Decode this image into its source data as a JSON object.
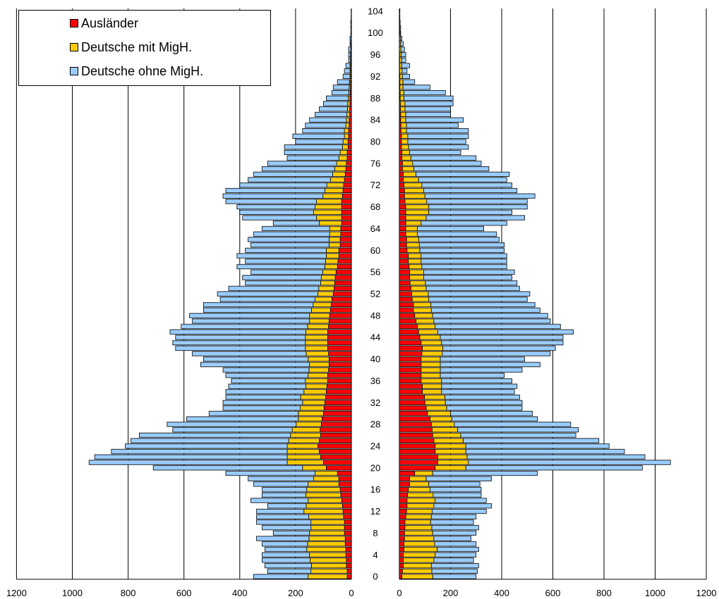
{
  "chart_data": {
    "type": "bar",
    "orientation": "horizontal-pyramid",
    "center_axis_labels": [
      "0",
      "4",
      "8",
      "12",
      "16",
      "20",
      "24",
      "28",
      "32",
      "36",
      "40",
      "44",
      "48",
      "52",
      "56",
      "60",
      "64",
      "68",
      "72",
      "76",
      "80",
      "84",
      "88",
      "92",
      "96",
      "100",
      "104"
    ],
    "left_axis": {
      "xlim": [
        1200,
        0
      ],
      "ticks": [
        "1200",
        "1000",
        "800",
        "600",
        "400",
        "200",
        "0"
      ]
    },
    "right_axis": {
      "xlim": [
        0,
        1200
      ],
      "ticks": [
        "0",
        "200",
        "400",
        "600",
        "800",
        "1000",
        "1200"
      ]
    },
    "grid": "vertical",
    "legend": {
      "position": "top-left",
      "items": [
        {
          "label": "Ausländer",
          "color": "#ff0000"
        },
        {
          "label": "Deutsche mit MigH.",
          "color": "#ffcc00"
        },
        {
          "label": "Deutsche ohne MigH.",
          "color": "#99ccff"
        }
      ]
    },
    "series": [
      {
        "name": "Ausländer",
        "color": "#ff0000"
      },
      {
        "name": "Deutsche mit MigH.",
        "color": "#ffcc00"
      },
      {
        "name": "Deutsche ohne MigH.",
        "color": "#99ccff"
      }
    ],
    "ages": [
      0,
      1,
      2,
      3,
      4,
      5,
      6,
      7,
      8,
      9,
      10,
      11,
      12,
      13,
      14,
      15,
      16,
      17,
      18,
      19,
      20,
      21,
      22,
      23,
      24,
      25,
      26,
      27,
      28,
      29,
      30,
      31,
      32,
      33,
      34,
      35,
      36,
      37,
      38,
      39,
      40,
      41,
      42,
      43,
      44,
      45,
      46,
      47,
      48,
      49,
      50,
      51,
      52,
      53,
      54,
      55,
      56,
      57,
      58,
      59,
      60,
      61,
      62,
      63,
      64,
      65,
      66,
      67,
      68,
      69,
      70,
      71,
      72,
      73,
      74,
      75,
      76,
      77,
      78,
      79,
      80,
      81,
      82,
      83,
      84,
      85,
      86,
      87,
      88,
      89,
      90,
      91,
      92,
      93,
      94,
      95,
      96,
      97,
      98,
      99,
      100,
      101,
      102,
      103,
      104
    ],
    "left": {
      "auslaender": [
        15,
        15,
        18,
        18,
        20,
        20,
        22,
        22,
        25,
        25,
        25,
        28,
        30,
        32,
        35,
        38,
        40,
        45,
        45,
        50,
        90,
        100,
        110,
        115,
        120,
        115,
        110,
        112,
        108,
        105,
        100,
        98,
        95,
        92,
        90,
        88,
        85,
        85,
        82,
        80,
        80,
        82,
        85,
        85,
        85,
        85,
        82,
        80,
        78,
        75,
        72,
        70,
        65,
        62,
        60,
        58,
        55,
        50,
        48,
        45,
        45,
        40,
        40,
        38,
        38,
        35,
        35,
        35,
        35,
        35,
        32,
        30,
        28,
        25,
        22,
        20,
        18,
        15,
        15,
        12,
        12,
        10,
        10,
        8,
        8,
        6,
        6,
        5,
        5,
        4,
        3,
        3,
        2,
        2,
        2,
        1,
        1,
        1,
        1,
        0,
        0,
        0,
        0,
        0,
        0
      ],
      "migh": [
        140,
        130,
        125,
        130,
        130,
        140,
        135,
        130,
        125,
        120,
        120,
        125,
        140,
        130,
        120,
        125,
        120,
        110,
        90,
        80,
        85,
        130,
        120,
        115,
        110,
        110,
        108,
        100,
        90,
        85,
        90,
        85,
        80,
        90,
        80,
        75,
        80,
        70,
        70,
        70,
        75,
        80,
        80,
        80,
        80,
        78,
        75,
        70,
        72,
        68,
        65,
        60,
        55,
        55,
        50,
        50,
        48,
        45,
        45,
        45,
        45,
        40,
        40,
        40,
        40,
        80,
        90,
        100,
        95,
        90,
        70,
        65,
        60,
        50,
        45,
        40,
        35,
        30,
        25,
        20,
        18,
        15,
        15,
        12,
        10,
        10,
        8,
        8,
        6,
        5,
        5,
        4,
        3,
        3,
        3,
        2,
        2,
        1,
        1,
        1,
        1,
        0,
        0,
        0,
        0
      ],
      "total": [
        350,
        300,
        310,
        320,
        320,
        310,
        320,
        340,
        280,
        320,
        340,
        340,
        340,
        300,
        360,
        320,
        320,
        350,
        370,
        450,
        710,
        940,
        920,
        860,
        810,
        790,
        760,
        640,
        660,
        590,
        510,
        460,
        460,
        450,
        450,
        440,
        430,
        450,
        460,
        540,
        530,
        570,
        630,
        640,
        630,
        650,
        610,
        570,
        580,
        530,
        530,
        470,
        480,
        440,
        380,
        390,
        360,
        410,
        380,
        410,
        380,
        360,
        370,
        350,
        320,
        280,
        390,
        400,
        410,
        450,
        460,
        450,
        400,
        370,
        350,
        320,
        300,
        230,
        240,
        240,
        200,
        210,
        175,
        165,
        150,
        130,
        115,
        100,
        90,
        70,
        65,
        50,
        30,
        25,
        20,
        10,
        10,
        10,
        5,
        5,
        2,
        2,
        2,
        1,
        1
      ]
    },
    "right": {
      "auslaender": [
        10,
        12,
        15,
        15,
        15,
        18,
        18,
        20,
        20,
        22,
        22,
        25,
        28,
        30,
        30,
        32,
        35,
        40,
        40,
        60,
        140,
        150,
        150,
        140,
        140,
        135,
        130,
        128,
        125,
        120,
        110,
        105,
        100,
        98,
        90,
        90,
        85,
        85,
        85,
        85,
        85,
        88,
        90,
        85,
        80,
        75,
        70,
        65,
        60,
        55,
        55,
        50,
        48,
        45,
        42,
        40,
        40,
        38,
        35,
        35,
        30,
        28,
        28,
        25,
        25,
        25,
        25,
        25,
        25,
        22,
        20,
        20,
        18,
        15,
        15,
        12,
        12,
        10,
        10,
        8,
        8,
        8,
        6,
        6,
        5,
        5,
        4,
        4,
        3,
        3,
        2,
        2,
        2,
        1,
        1,
        1,
        1,
        0,
        0,
        0,
        0,
        0,
        0,
        0,
        0
      ],
      "migh": [
        120,
        115,
        110,
        120,
        125,
        130,
        120,
        115,
        110,
        105,
        100,
        100,
        100,
        105,
        110,
        100,
        85,
        75,
        65,
        70,
        120,
        120,
        115,
        120,
        120,
        115,
        110,
        100,
        90,
        85,
        90,
        80,
        80,
        80,
        75,
        75,
        80,
        75,
        75,
        75,
        75,
        80,
        80,
        80,
        80,
        75,
        70,
        70,
        70,
        70,
        68,
        65,
        65,
        60,
        60,
        55,
        55,
        50,
        50,
        50,
        50,
        50,
        48,
        45,
        45,
        60,
        80,
        90,
        90,
        85,
        80,
        75,
        70,
        60,
        50,
        45,
        40,
        35,
        30,
        28,
        25,
        25,
        22,
        22,
        20,
        20,
        18,
        18,
        15,
        15,
        12,
        12,
        10,
        10,
        8,
        8,
        6,
        6,
        5,
        4,
        3,
        2,
        2,
        1,
        1
      ],
      "total": [
        300,
        305,
        310,
        290,
        300,
        310,
        300,
        280,
        300,
        310,
        290,
        300,
        340,
        360,
        340,
        320,
        320,
        315,
        360,
        540,
        950,
        1060,
        960,
        880,
        820,
        780,
        690,
        700,
        670,
        540,
        520,
        480,
        480,
        470,
        450,
        460,
        440,
        410,
        480,
        550,
        490,
        590,
        610,
        640,
        640,
        680,
        630,
        590,
        580,
        550,
        530,
        500,
        510,
        470,
        460,
        440,
        450,
        420,
        420,
        420,
        410,
        410,
        390,
        380,
        330,
        420,
        490,
        440,
        500,
        500,
        530,
        460,
        440,
        420,
        430,
        350,
        320,
        300,
        240,
        270,
        260,
        270,
        270,
        230,
        250,
        200,
        200,
        210,
        210,
        180,
        120,
        60,
        40,
        30,
        40,
        25,
        25,
        20,
        15,
        10,
        5,
        5,
        3,
        2,
        2
      ]
    }
  }
}
